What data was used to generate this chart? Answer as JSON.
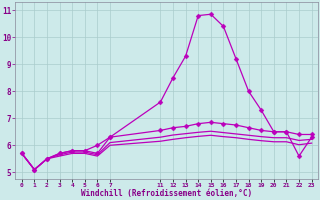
{
  "bg_color": "#cdeaea",
  "grid_color": "#aacccc",
  "line_color": "#bb00bb",
  "xlabel": "Windchill (Refroidissement éolien,°C)",
  "xlim": [
    -0.5,
    23.5
  ],
  "ylim": [
    4.75,
    11.3
  ],
  "yticks": [
    5,
    6,
    7,
    8,
    9,
    10,
    11
  ],
  "line1_x": [
    0,
    1,
    2,
    3,
    4,
    5,
    6,
    7,
    11,
    12,
    13,
    14,
    15,
    16,
    17,
    18,
    19,
    20,
    21,
    22,
    23
  ],
  "line1_y": [
    5.7,
    5.1,
    5.5,
    5.7,
    5.8,
    5.8,
    6.0,
    6.3,
    7.6,
    8.5,
    9.3,
    10.8,
    10.85,
    10.4,
    9.2,
    8.0,
    7.3,
    6.5,
    6.5,
    5.6,
    6.3
  ],
  "line2_x": [
    0,
    1,
    2,
    3,
    4,
    5,
    6,
    7,
    11,
    12,
    13,
    14,
    15,
    16,
    17,
    18,
    19,
    20,
    21,
    22,
    23
  ],
  "line2_y": [
    5.7,
    5.1,
    5.5,
    5.7,
    5.8,
    5.8,
    5.7,
    6.3,
    6.55,
    6.65,
    6.7,
    6.8,
    6.85,
    6.8,
    6.75,
    6.65,
    6.55,
    6.5,
    6.5,
    6.4,
    6.4
  ],
  "line3_x": [
    0,
    1,
    2,
    3,
    4,
    5,
    6,
    7,
    11,
    12,
    13,
    14,
    15,
    16,
    17,
    18,
    19,
    20,
    21,
    22,
    23
  ],
  "line3_y": [
    5.7,
    5.1,
    5.5,
    5.65,
    5.75,
    5.75,
    5.65,
    6.1,
    6.3,
    6.38,
    6.43,
    6.48,
    6.52,
    6.47,
    6.42,
    6.37,
    6.32,
    6.28,
    6.28,
    6.18,
    6.22
  ],
  "line4_x": [
    0,
    1,
    2,
    3,
    4,
    5,
    6,
    7,
    11,
    12,
    13,
    14,
    15,
    16,
    17,
    18,
    19,
    20,
    21,
    22,
    23
  ],
  "line4_y": [
    5.7,
    5.1,
    5.5,
    5.6,
    5.7,
    5.7,
    5.6,
    6.0,
    6.15,
    6.22,
    6.28,
    6.33,
    6.37,
    6.32,
    6.28,
    6.22,
    6.17,
    6.13,
    6.13,
    6.02,
    6.08
  ],
  "tick_color": "#880088",
  "label_color": "#880088",
  "marker_size": 2.5,
  "line_width": 0.9
}
